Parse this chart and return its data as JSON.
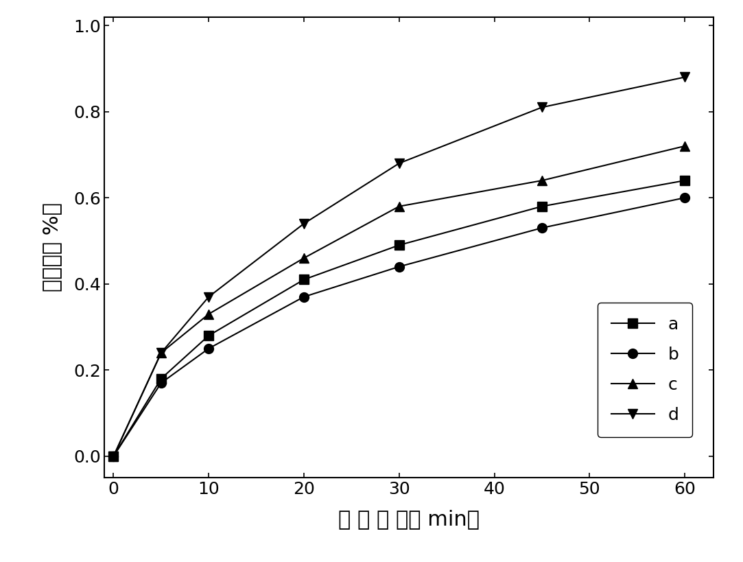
{
  "x": [
    0,
    5,
    10,
    20,
    30,
    45,
    60
  ],
  "series": {
    "a": [
      0.0,
      0.18,
      0.28,
      0.41,
      0.49,
      0.58,
      0.64
    ],
    "b": [
      0.0,
      0.17,
      0.25,
      0.37,
      0.44,
      0.53,
      0.6
    ],
    "c": [
      0.0,
      0.24,
      0.33,
      0.46,
      0.58,
      0.64,
      0.72
    ],
    "d": [
      0.0,
      0.24,
      0.37,
      0.54,
      0.68,
      0.81,
      0.88
    ]
  },
  "markers": {
    "a": "s",
    "b": "o",
    "c": "^",
    "d": "v"
  },
  "xlabel": "处 理 时 间（ min）",
  "ylabel": "去除率（ %）",
  "xlim": [
    -1,
    63
  ],
  "ylim": [
    -0.05,
    1.02
  ],
  "xticks": [
    0,
    10,
    20,
    30,
    40,
    50,
    60
  ],
  "yticks": [
    0.0,
    0.2,
    0.4,
    0.6,
    0.8,
    1.0
  ],
  "line_color": "#000000",
  "marker_color": "#000000",
  "marker_size": 10,
  "line_width": 1.5,
  "legend_fontsize": 18,
  "axis_fontsize": 22,
  "tick_fontsize": 18,
  "background_color": "#ffffff"
}
